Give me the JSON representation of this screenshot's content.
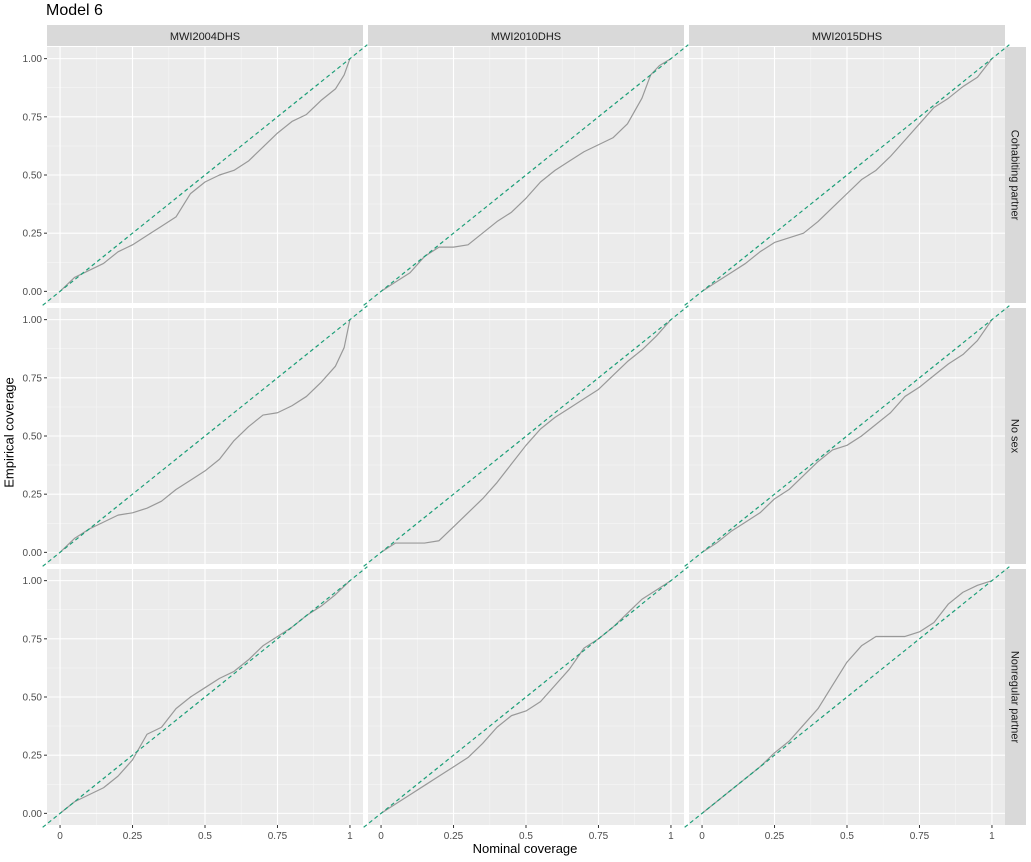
{
  "chart_data": {
    "type": "line",
    "title": "Model 6",
    "xlabel": "Nominal coverage",
    "ylabel": "Empirical coverage",
    "xlim": [
      0,
      1
    ],
    "ylim": [
      0,
      1
    ],
    "x_ticks": [
      "0",
      "0.25",
      "0.5",
      "0.75",
      "1"
    ],
    "y_ticks": [
      "0.00",
      "0.25",
      "0.50",
      "0.75",
      "1.00"
    ],
    "grid": true,
    "legend": "none",
    "facet_columns": [
      "MWI2004DHS",
      "MWI2010DHS",
      "MWI2015DHS"
    ],
    "facet_rows": [
      "Cohabiting partner",
      "No sex",
      "Nonregular partner"
    ],
    "reference_line": {
      "slope": 1,
      "intercept": 0,
      "style": "dashed",
      "color": "#1b9e77"
    },
    "line_color": "#999999",
    "panels": [
      {
        "column": "MWI2004DHS",
        "row": "Cohabiting partner",
        "x": [
          0,
          0.05,
          0.1,
          0.15,
          0.2,
          0.25,
          0.3,
          0.35,
          0.4,
          0.45,
          0.5,
          0.55,
          0.6,
          0.65,
          0.7,
          0.75,
          0.8,
          0.85,
          0.9,
          0.95,
          0.98,
          1
        ],
        "y": [
          0,
          0.06,
          0.09,
          0.12,
          0.17,
          0.2,
          0.24,
          0.28,
          0.32,
          0.42,
          0.47,
          0.5,
          0.52,
          0.56,
          0.62,
          0.68,
          0.73,
          0.76,
          0.82,
          0.87,
          0.93,
          1
        ]
      },
      {
        "column": "MWI2010DHS",
        "row": "Cohabiting partner",
        "x": [
          0,
          0.05,
          0.1,
          0.15,
          0.2,
          0.25,
          0.3,
          0.35,
          0.4,
          0.45,
          0.5,
          0.55,
          0.6,
          0.65,
          0.7,
          0.75,
          0.8,
          0.85,
          0.9,
          0.93,
          0.96,
          1
        ],
        "y": [
          0,
          0.04,
          0.08,
          0.15,
          0.19,
          0.19,
          0.2,
          0.25,
          0.3,
          0.34,
          0.4,
          0.47,
          0.52,
          0.56,
          0.6,
          0.63,
          0.66,
          0.72,
          0.83,
          0.93,
          0.97,
          1
        ]
      },
      {
        "column": "MWI2015DHS",
        "row": "Cohabiting partner",
        "x": [
          0,
          0.05,
          0.1,
          0.15,
          0.2,
          0.25,
          0.3,
          0.35,
          0.4,
          0.45,
          0.5,
          0.55,
          0.6,
          0.65,
          0.7,
          0.75,
          0.8,
          0.85,
          0.9,
          0.95,
          1
        ],
        "y": [
          0,
          0.04,
          0.08,
          0.12,
          0.17,
          0.21,
          0.23,
          0.25,
          0.3,
          0.36,
          0.42,
          0.48,
          0.52,
          0.58,
          0.65,
          0.72,
          0.79,
          0.83,
          0.88,
          0.92,
          1
        ]
      },
      {
        "column": "MWI2004DHS",
        "row": "No sex",
        "x": [
          0,
          0.05,
          0.1,
          0.15,
          0.2,
          0.25,
          0.3,
          0.35,
          0.4,
          0.45,
          0.5,
          0.55,
          0.6,
          0.65,
          0.7,
          0.75,
          0.8,
          0.85,
          0.9,
          0.95,
          0.98,
          1
        ],
        "y": [
          0,
          0.06,
          0.1,
          0.13,
          0.16,
          0.17,
          0.19,
          0.22,
          0.27,
          0.31,
          0.35,
          0.4,
          0.48,
          0.54,
          0.59,
          0.6,
          0.63,
          0.67,
          0.73,
          0.8,
          0.88,
          1
        ]
      },
      {
        "column": "MWI2010DHS",
        "row": "No sex",
        "x": [
          0,
          0.05,
          0.1,
          0.15,
          0.2,
          0.25,
          0.3,
          0.35,
          0.4,
          0.45,
          0.5,
          0.55,
          0.6,
          0.65,
          0.7,
          0.75,
          0.8,
          0.85,
          0.9,
          0.95,
          1
        ],
        "y": [
          0,
          0.04,
          0.04,
          0.04,
          0.05,
          0.11,
          0.17,
          0.23,
          0.3,
          0.38,
          0.46,
          0.53,
          0.58,
          0.62,
          0.66,
          0.7,
          0.76,
          0.82,
          0.87,
          0.93,
          1
        ]
      },
      {
        "column": "MWI2015DHS",
        "row": "No sex",
        "x": [
          0,
          0.05,
          0.1,
          0.15,
          0.2,
          0.25,
          0.3,
          0.35,
          0.4,
          0.45,
          0.5,
          0.55,
          0.6,
          0.65,
          0.7,
          0.75,
          0.8,
          0.85,
          0.9,
          0.95,
          1
        ],
        "y": [
          0,
          0.04,
          0.09,
          0.13,
          0.17,
          0.23,
          0.27,
          0.33,
          0.39,
          0.44,
          0.46,
          0.5,
          0.55,
          0.6,
          0.67,
          0.71,
          0.76,
          0.81,
          0.85,
          0.91,
          1
        ]
      },
      {
        "column": "MWI2004DHS",
        "row": "Nonregular partner",
        "x": [
          0,
          0.05,
          0.1,
          0.15,
          0.2,
          0.25,
          0.3,
          0.35,
          0.4,
          0.45,
          0.5,
          0.55,
          0.6,
          0.65,
          0.7,
          0.75,
          0.8,
          0.85,
          0.9,
          0.95,
          1
        ],
        "y": [
          0,
          0.05,
          0.08,
          0.11,
          0.16,
          0.23,
          0.34,
          0.37,
          0.45,
          0.5,
          0.54,
          0.58,
          0.61,
          0.66,
          0.72,
          0.76,
          0.8,
          0.85,
          0.89,
          0.94,
          1
        ]
      },
      {
        "column": "MWI2010DHS",
        "row": "Nonregular partner",
        "x": [
          0,
          0.05,
          0.1,
          0.15,
          0.2,
          0.25,
          0.3,
          0.35,
          0.4,
          0.45,
          0.5,
          0.55,
          0.6,
          0.65,
          0.7,
          0.75,
          0.8,
          0.85,
          0.9,
          0.95,
          1
        ],
        "y": [
          0,
          0.04,
          0.08,
          0.12,
          0.16,
          0.2,
          0.24,
          0.3,
          0.37,
          0.42,
          0.44,
          0.48,
          0.55,
          0.62,
          0.71,
          0.75,
          0.8,
          0.86,
          0.92,
          0.96,
          1
        ]
      },
      {
        "column": "MWI2015DHS",
        "row": "Nonregular partner",
        "x": [
          0,
          0.05,
          0.1,
          0.15,
          0.2,
          0.25,
          0.3,
          0.35,
          0.4,
          0.45,
          0.5,
          0.55,
          0.6,
          0.65,
          0.7,
          0.75,
          0.8,
          0.85,
          0.9,
          0.95,
          1
        ],
        "y": [
          0,
          0.05,
          0.1,
          0.15,
          0.2,
          0.26,
          0.31,
          0.38,
          0.45,
          0.55,
          0.65,
          0.72,
          0.76,
          0.76,
          0.76,
          0.78,
          0.82,
          0.9,
          0.95,
          0.98,
          1
        ]
      }
    ]
  }
}
